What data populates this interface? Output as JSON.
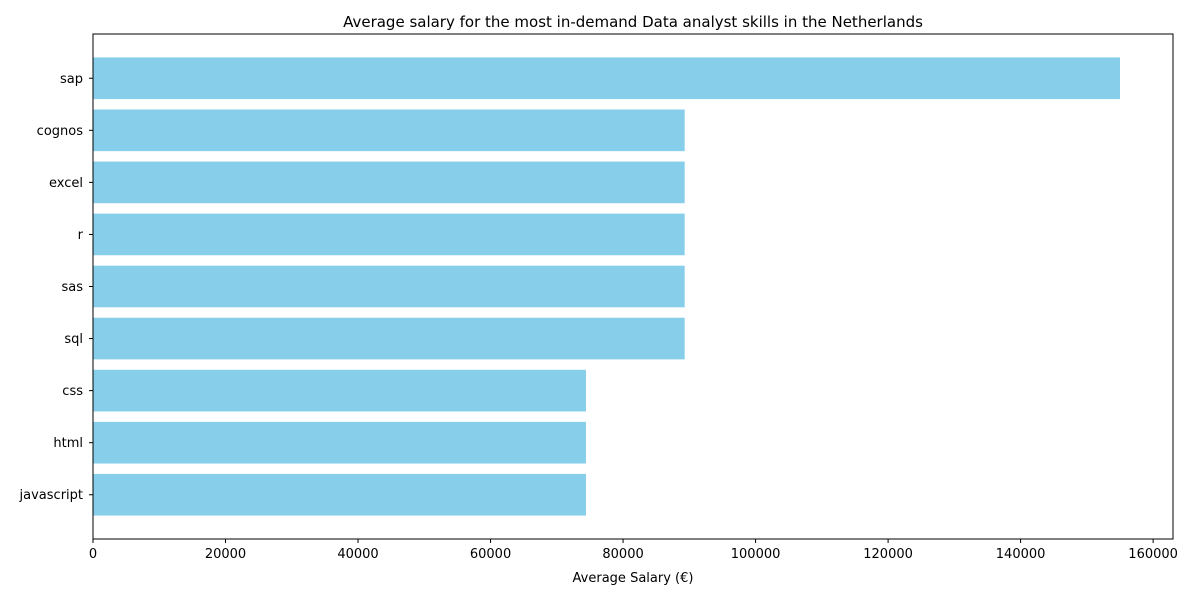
{
  "chart_data": {
    "type": "bar",
    "orientation": "horizontal",
    "title": "Average salary for the most in-demand Data analyst skills in the Netherlands",
    "xlabel": "Average Salary (€)",
    "ylabel": "",
    "categories": [
      "sap",
      "cognos",
      "excel",
      "r",
      "sas",
      "sql",
      "css",
      "html",
      "javascript"
    ],
    "values": [
      155000,
      89300,
      89300,
      89300,
      89300,
      89300,
      74400,
      74400,
      74400
    ],
    "xlim": [
      0,
      163000
    ],
    "xticks": [
      0,
      20000,
      40000,
      60000,
      80000,
      100000,
      120000,
      140000,
      160000
    ],
    "bar_color": "#87ceeb",
    "grid": false,
    "legend": "none"
  }
}
